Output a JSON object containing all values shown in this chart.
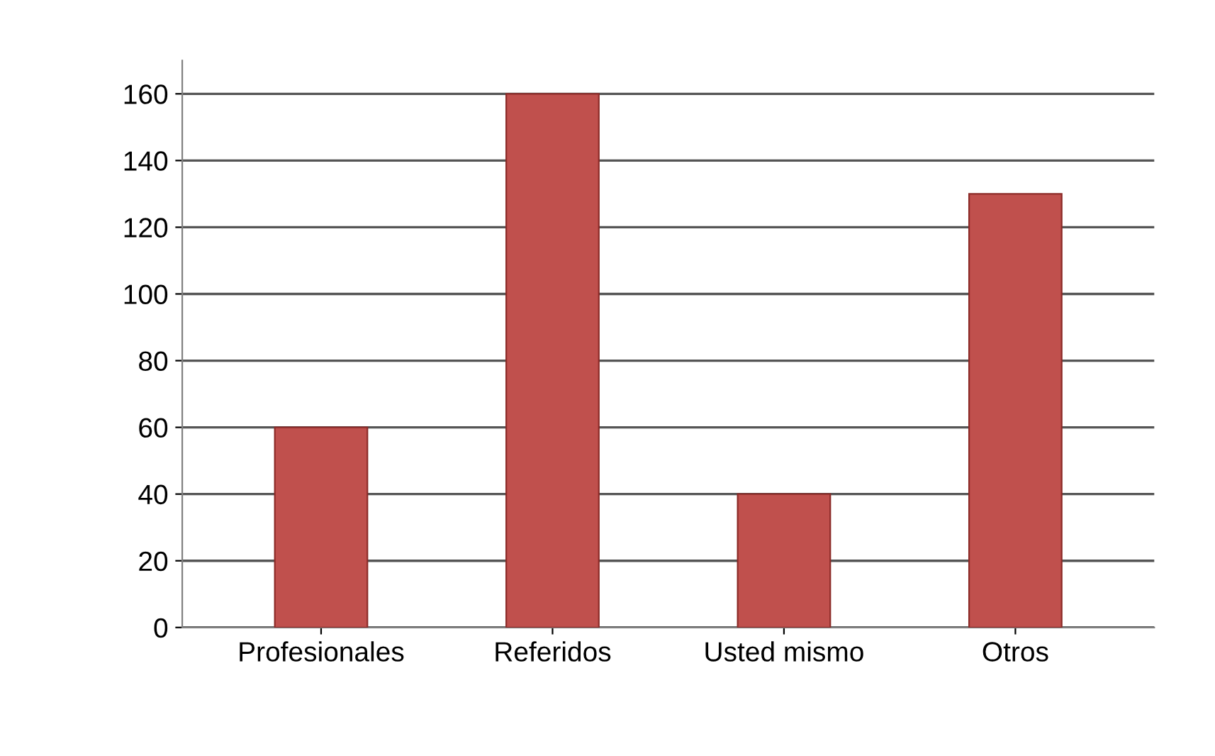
{
  "chart_data": {
    "type": "bar",
    "categories": [
      "Profesionales",
      "Referidos",
      "Usted mismo",
      "Otros"
    ],
    "values": [
      60,
      160,
      40,
      130
    ],
    "color": "#c0504d",
    "ylim": [
      0,
      170
    ],
    "yticks": [
      0,
      20,
      40,
      60,
      80,
      100,
      120,
      140,
      160
    ],
    "grid": "y"
  }
}
